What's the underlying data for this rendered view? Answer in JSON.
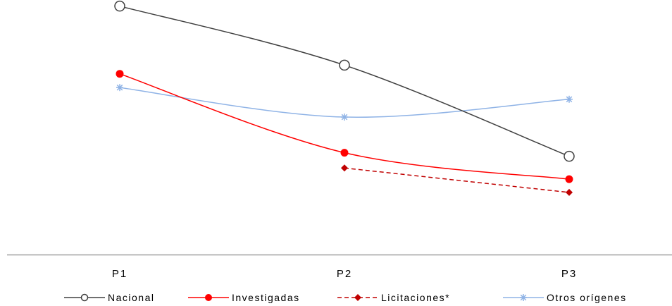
{
  "chart_data": {
    "type": "line",
    "categories": [
      "P1",
      "P2",
      "P3"
    ],
    "ylim": [
      0,
      10
    ],
    "grid": false,
    "legend": "bottom",
    "series": [
      {
        "name": "Nacional",
        "values": [
          9.76,
          7.44,
          3.86
        ],
        "color": "#404040",
        "marker": "open-circle",
        "dash": "solid"
      },
      {
        "name": "Investigadas",
        "values": [
          7.1,
          4.0,
          2.96
        ],
        "color": "#ff0000",
        "marker": "filled-circle",
        "dash": "solid"
      },
      {
        "name": "Licitaciones*",
        "values": [
          null,
          3.4,
          2.44
        ],
        "color": "#c00000",
        "marker": "diamond",
        "dash": "dashed"
      },
      {
        "name": "Otros orígenes",
        "values": [
          6.56,
          5.4,
          6.1
        ],
        "color": "#8fb3e6",
        "marker": "asterisk",
        "dash": "solid"
      }
    ]
  }
}
